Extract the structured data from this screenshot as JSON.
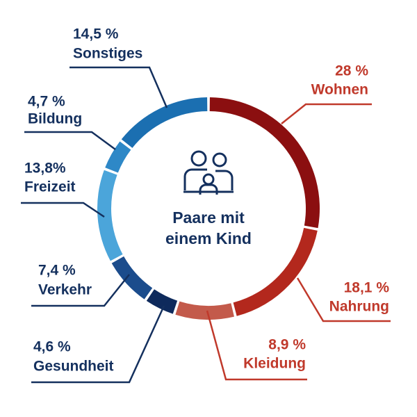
{
  "chart_data": {
    "type": "donut",
    "categories": [
      "Wohnen",
      "Nahrung",
      "Kleidung",
      "Gesundheit",
      "Verkehr",
      "Freizeit",
      "Bildung",
      "Sonstiges"
    ],
    "values": [
      28,
      18.1,
      8.9,
      4.6,
      7.4,
      13.8,
      4.7,
      14.5
    ],
    "value_labels": [
      "28 %",
      "18,1 %",
      "8,9 %",
      "4,6 %",
      "7,4 %",
      "13,8%",
      "4,7 %",
      "14,5 %"
    ],
    "colors": [
      "#8b0f10",
      "#b3281d",
      "#c35a4b",
      "#0e2a5c",
      "#1b4c8c",
      "#4ba5da",
      "#2e88c7",
      "#1b6fb1"
    ],
    "center_label": [
      "Paare mit",
      "einem Kind"
    ]
  }
}
